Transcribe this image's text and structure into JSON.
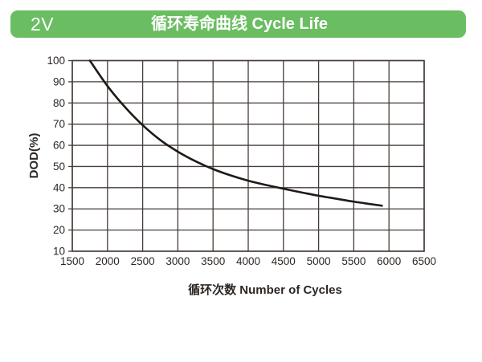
{
  "header": {
    "badge": "2V",
    "title": "循环寿命曲线 Cycle Life",
    "bg_color": "#6bbd62",
    "text_color": "#ffffff"
  },
  "chart_data": {
    "type": "line",
    "title": "循环寿命曲线 Cycle Life",
    "xlabel": "循环次数 Number of Cycles",
    "ylabel": "DOD(%)",
    "xlim": [
      1500,
      6500
    ],
    "ylim": [
      10,
      100
    ],
    "xticks": [
      1500,
      2000,
      2500,
      3000,
      3500,
      4000,
      4500,
      5000,
      5500,
      6000,
      6500
    ],
    "yticks": [
      10,
      20,
      30,
      40,
      50,
      60,
      70,
      80,
      90,
      100
    ],
    "grid": true,
    "legend": false,
    "grid_color": "#463d38",
    "label_color": "#2d2723",
    "series": [
      {
        "name": "cycle-life-curve",
        "color": "#1f1a17",
        "points": [
          [
            1750,
            100
          ],
          [
            2000,
            88
          ],
          [
            2250,
            78
          ],
          [
            2500,
            69.5
          ],
          [
            2750,
            62.5
          ],
          [
            3000,
            57
          ],
          [
            3250,
            52.5
          ],
          [
            3500,
            48.8
          ],
          [
            3750,
            45.8
          ],
          [
            4000,
            43.3
          ],
          [
            4250,
            41.3
          ],
          [
            4500,
            39.5
          ],
          [
            4750,
            37.8
          ],
          [
            5000,
            36.2
          ],
          [
            5250,
            34.8
          ],
          [
            5500,
            33.4
          ],
          [
            5750,
            32.2
          ],
          [
            5900,
            31.5
          ]
        ]
      }
    ]
  }
}
